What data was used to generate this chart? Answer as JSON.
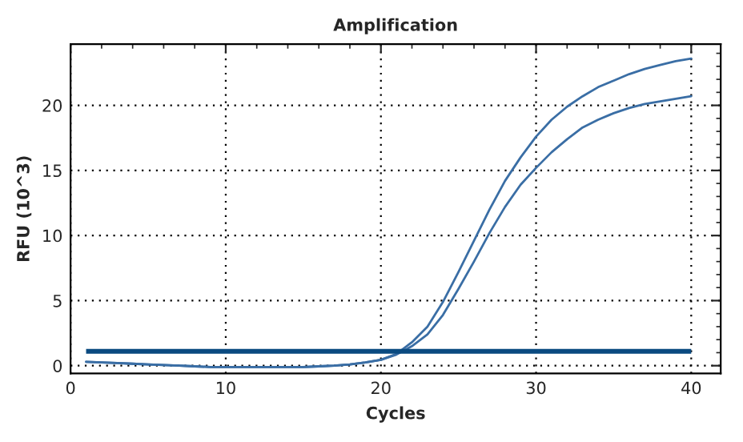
{
  "chart_data": {
    "type": "line",
    "title": "Amplification",
    "xlabel": "Cycles",
    "ylabel": "RFU (10^3)",
    "x": [
      1,
      2,
      3,
      4,
      5,
      6,
      7,
      8,
      9,
      10,
      11,
      12,
      13,
      14,
      15,
      16,
      17,
      18,
      19,
      20,
      21,
      22,
      23,
      24,
      25,
      26,
      27,
      28,
      29,
      30,
      31,
      32,
      33,
      34,
      35,
      36,
      37,
      38,
      39,
      40
    ],
    "series": [
      {
        "color": "#3a6ea5",
        "values": [
          0.3,
          0.25,
          0.2,
          0.15,
          0.1,
          0.05,
          0,
          -0.05,
          -0.1,
          -0.1,
          -0.1,
          -0.1,
          -0.1,
          -0.1,
          -0.1,
          -0.05,
          0,
          0.1,
          0.25,
          0.45,
          0.9,
          1.8,
          3.0,
          4.9,
          7.2,
          9.6,
          12.0,
          14.2,
          16.0,
          17.6,
          18.9,
          19.9,
          20.7,
          21.4,
          21.9,
          22.4,
          22.8,
          23.1,
          23.4,
          23.6
        ]
      },
      {
        "color": "#3a6ea5",
        "values": [
          0.3,
          0.25,
          0.2,
          0.15,
          0.1,
          0.05,
          0,
          -0.05,
          -0.1,
          -0.1,
          -0.1,
          -0.1,
          -0.1,
          -0.1,
          -0.1,
          -0.05,
          0,
          0.1,
          0.25,
          0.45,
          0.85,
          1.5,
          2.4,
          3.9,
          5.9,
          8.0,
          10.2,
          12.2,
          13.9,
          15.2,
          16.4,
          17.4,
          18.3,
          18.9,
          19.4,
          19.8,
          20.1,
          20.3,
          20.5,
          20.7
        ]
      }
    ],
    "ref_lines": [
      {
        "axis": "y",
        "value": 1.1,
        "color": "#0a4a80"
      }
    ],
    "xlim": [
      0,
      41.9
    ],
    "ylim": [
      -0.6,
      24.7
    ],
    "xticks": [
      0,
      10,
      20,
      30,
      40
    ],
    "yticks": [
      0,
      5,
      10,
      15,
      20
    ],
    "grid": true,
    "marker": "none",
    "line_style": "solid"
  }
}
